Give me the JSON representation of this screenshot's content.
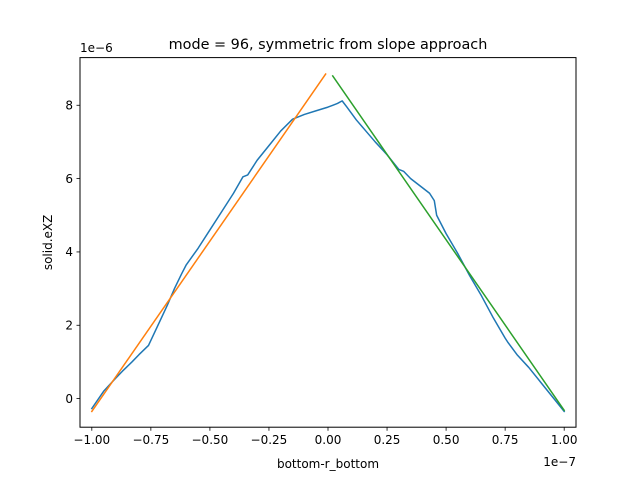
{
  "chart_data": {
    "type": "line",
    "title": "mode = 96, symmetric from slope approach",
    "xlabel": "bottom-r_bottom",
    "ylabel": "solid.eXZ",
    "x_offset_label": "1e−7",
    "y_offset_label": "1e−6",
    "xlim": [
      -1.05,
      1.05
    ],
    "ylim": [
      -0.78,
      9.3
    ],
    "x_ticks": [
      -1.0,
      -0.75,
      -0.5,
      -0.25,
      0.0,
      0.25,
      0.5,
      0.75,
      1.0
    ],
    "x_tick_labels": [
      "−1.00",
      "−0.75",
      "−0.50",
      "−0.25",
      "0.00",
      "0.25",
      "0.50",
      "0.75",
      "1.00"
    ],
    "y_ticks": [
      0,
      2,
      4,
      6,
      8
    ],
    "y_tick_labels": [
      "0",
      "2",
      "4",
      "6",
      "8"
    ],
    "grid": false,
    "series": [
      {
        "color": "#1f77b4",
        "points": [
          [
            -1.0,
            -0.27
          ],
          [
            -0.95,
            0.2
          ],
          [
            -0.9,
            0.55
          ],
          [
            -0.87,
            0.75
          ],
          [
            -0.83,
            1.0
          ],
          [
            -0.8,
            1.2
          ],
          [
            -0.76,
            1.45
          ],
          [
            -0.72,
            2.0
          ],
          [
            -0.68,
            2.55
          ],
          [
            -0.65,
            3.0
          ],
          [
            -0.62,
            3.4
          ],
          [
            -0.6,
            3.65
          ],
          [
            -0.55,
            4.1
          ],
          [
            -0.5,
            4.6
          ],
          [
            -0.45,
            5.1
          ],
          [
            -0.4,
            5.6
          ],
          [
            -0.36,
            6.05
          ],
          [
            -0.34,
            6.1
          ],
          [
            -0.3,
            6.5
          ],
          [
            -0.25,
            6.9
          ],
          [
            -0.2,
            7.3
          ],
          [
            -0.15,
            7.62
          ],
          [
            -0.1,
            7.75
          ],
          [
            -0.05,
            7.85
          ],
          [
            0.0,
            7.95
          ],
          [
            0.02,
            8.0
          ],
          [
            0.04,
            8.05
          ],
          [
            0.06,
            8.12
          ],
          [
            0.08,
            7.95
          ],
          [
            0.12,
            7.6
          ],
          [
            0.16,
            7.3
          ],
          [
            0.2,
            7.0
          ],
          [
            0.25,
            6.65
          ],
          [
            0.3,
            6.25
          ],
          [
            0.32,
            6.2
          ],
          [
            0.35,
            6.0
          ],
          [
            0.4,
            5.75
          ],
          [
            0.43,
            5.6
          ],
          [
            0.45,
            5.4
          ],
          [
            0.46,
            5.0
          ],
          [
            0.5,
            4.5
          ],
          [
            0.55,
            3.95
          ],
          [
            0.6,
            3.35
          ],
          [
            0.65,
            2.8
          ],
          [
            0.7,
            2.2
          ],
          [
            0.75,
            1.65
          ],
          [
            0.76,
            1.55
          ],
          [
            0.8,
            1.2
          ],
          [
            0.85,
            0.85
          ],
          [
            0.9,
            0.45
          ],
          [
            0.95,
            0.05
          ],
          [
            1.0,
            -0.35
          ]
        ]
      },
      {
        "color": "#ff7f0e",
        "points": [
          [
            -1.0,
            -0.35
          ],
          [
            -0.01,
            8.85
          ]
        ]
      },
      {
        "color": "#2ca02c",
        "points": [
          [
            0.02,
            8.8
          ],
          [
            1.0,
            -0.32
          ]
        ]
      }
    ]
  }
}
